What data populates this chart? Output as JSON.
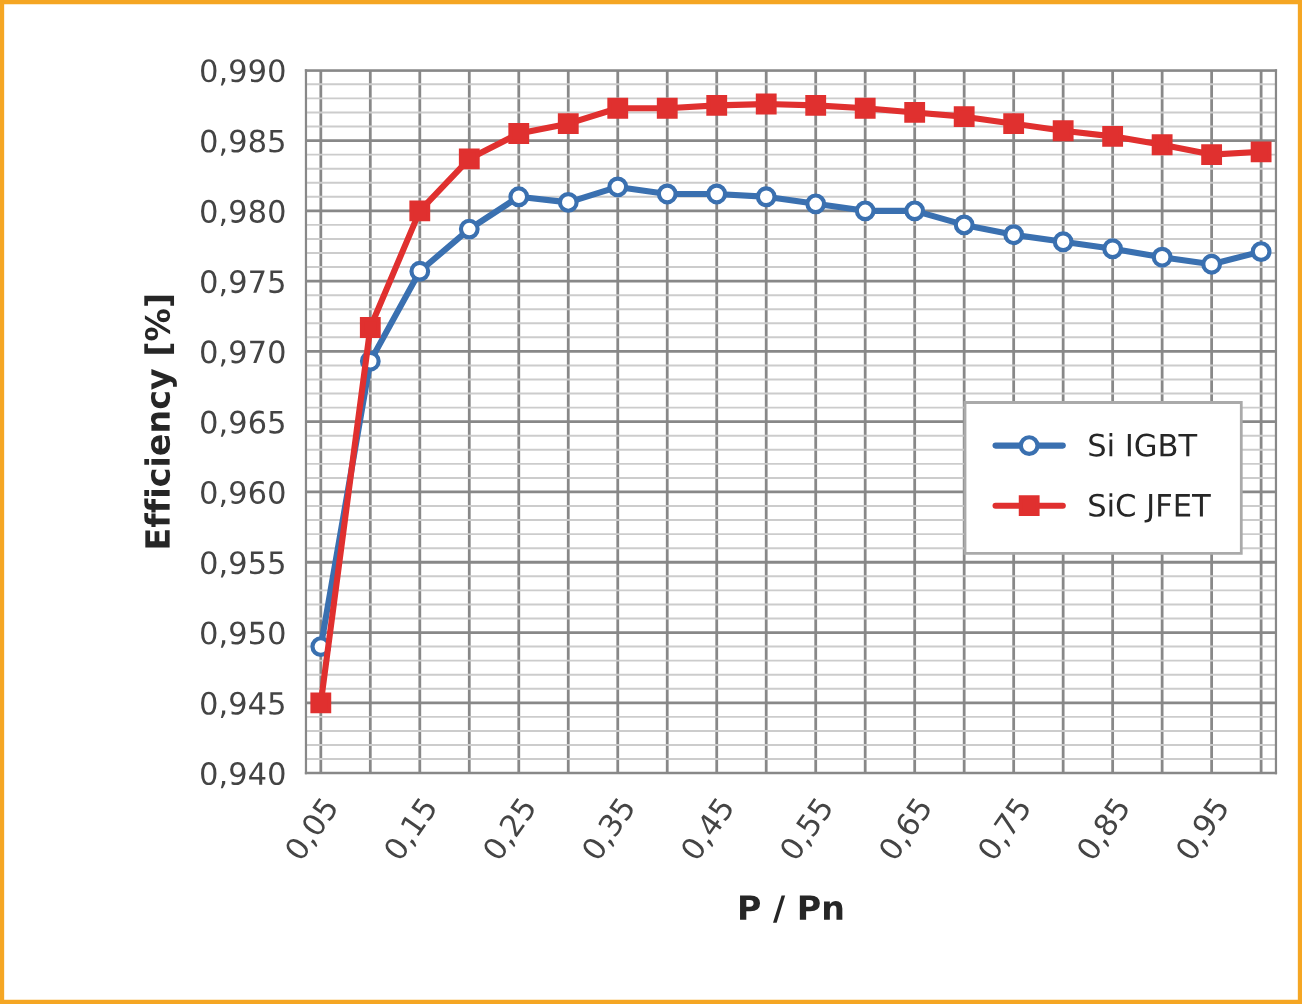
{
  "chart_data": {
    "type": "line",
    "xlabel": "P / Pn",
    "ylabel": "Efficiency [%]",
    "categories": [
      "0,05",
      null,
      "0,15",
      null,
      "0,25",
      null,
      "0,35",
      null,
      "0,45",
      null,
      "0,55",
      null,
      "0,65",
      null,
      "0,75",
      null,
      "0,85",
      null,
      "0,95",
      null
    ],
    "series": [
      {
        "name": "Si IGBT",
        "color": "#3a70b0",
        "marker": "circle",
        "values": [
          0.949,
          0.9693,
          0.9757,
          0.9787,
          0.981,
          0.9806,
          0.9817,
          0.9812,
          0.9812,
          0.981,
          0.9805,
          0.98,
          0.98,
          0.979,
          0.9783,
          0.9778,
          0.9773,
          0.9767,
          0.9762,
          0.9771
        ]
      },
      {
        "name": "SiC JFET",
        "color": "#e0302f",
        "marker": "square",
        "values": [
          0.945,
          0.9717,
          0.98,
          0.9837,
          0.9855,
          0.9862,
          0.9873,
          0.9873,
          0.9875,
          0.9876,
          0.9875,
          0.9873,
          0.987,
          0.9867,
          0.9862,
          0.9857,
          0.9853,
          0.9847,
          0.984,
          0.9842
        ]
      }
    ],
    "ylim": [
      0.94,
      0.99
    ],
    "yticks": [
      {
        "value": 0.94,
        "label": "0,940"
      },
      {
        "value": 0.945,
        "label": "0,945"
      },
      {
        "value": 0.95,
        "label": "0,950"
      },
      {
        "value": 0.955,
        "label": "0,955"
      },
      {
        "value": 0.96,
        "label": "0,960"
      },
      {
        "value": 0.965,
        "label": "0,965"
      },
      {
        "value": 0.97,
        "label": "0,970"
      },
      {
        "value": 0.975,
        "label": "0,975"
      },
      {
        "value": 0.98,
        "label": "0,980"
      },
      {
        "value": 0.985,
        "label": "0,985"
      },
      {
        "value": 0.99,
        "label": "0,990"
      }
    ],
    "grid": true,
    "legend": "right",
    "line_style": "solid"
  }
}
